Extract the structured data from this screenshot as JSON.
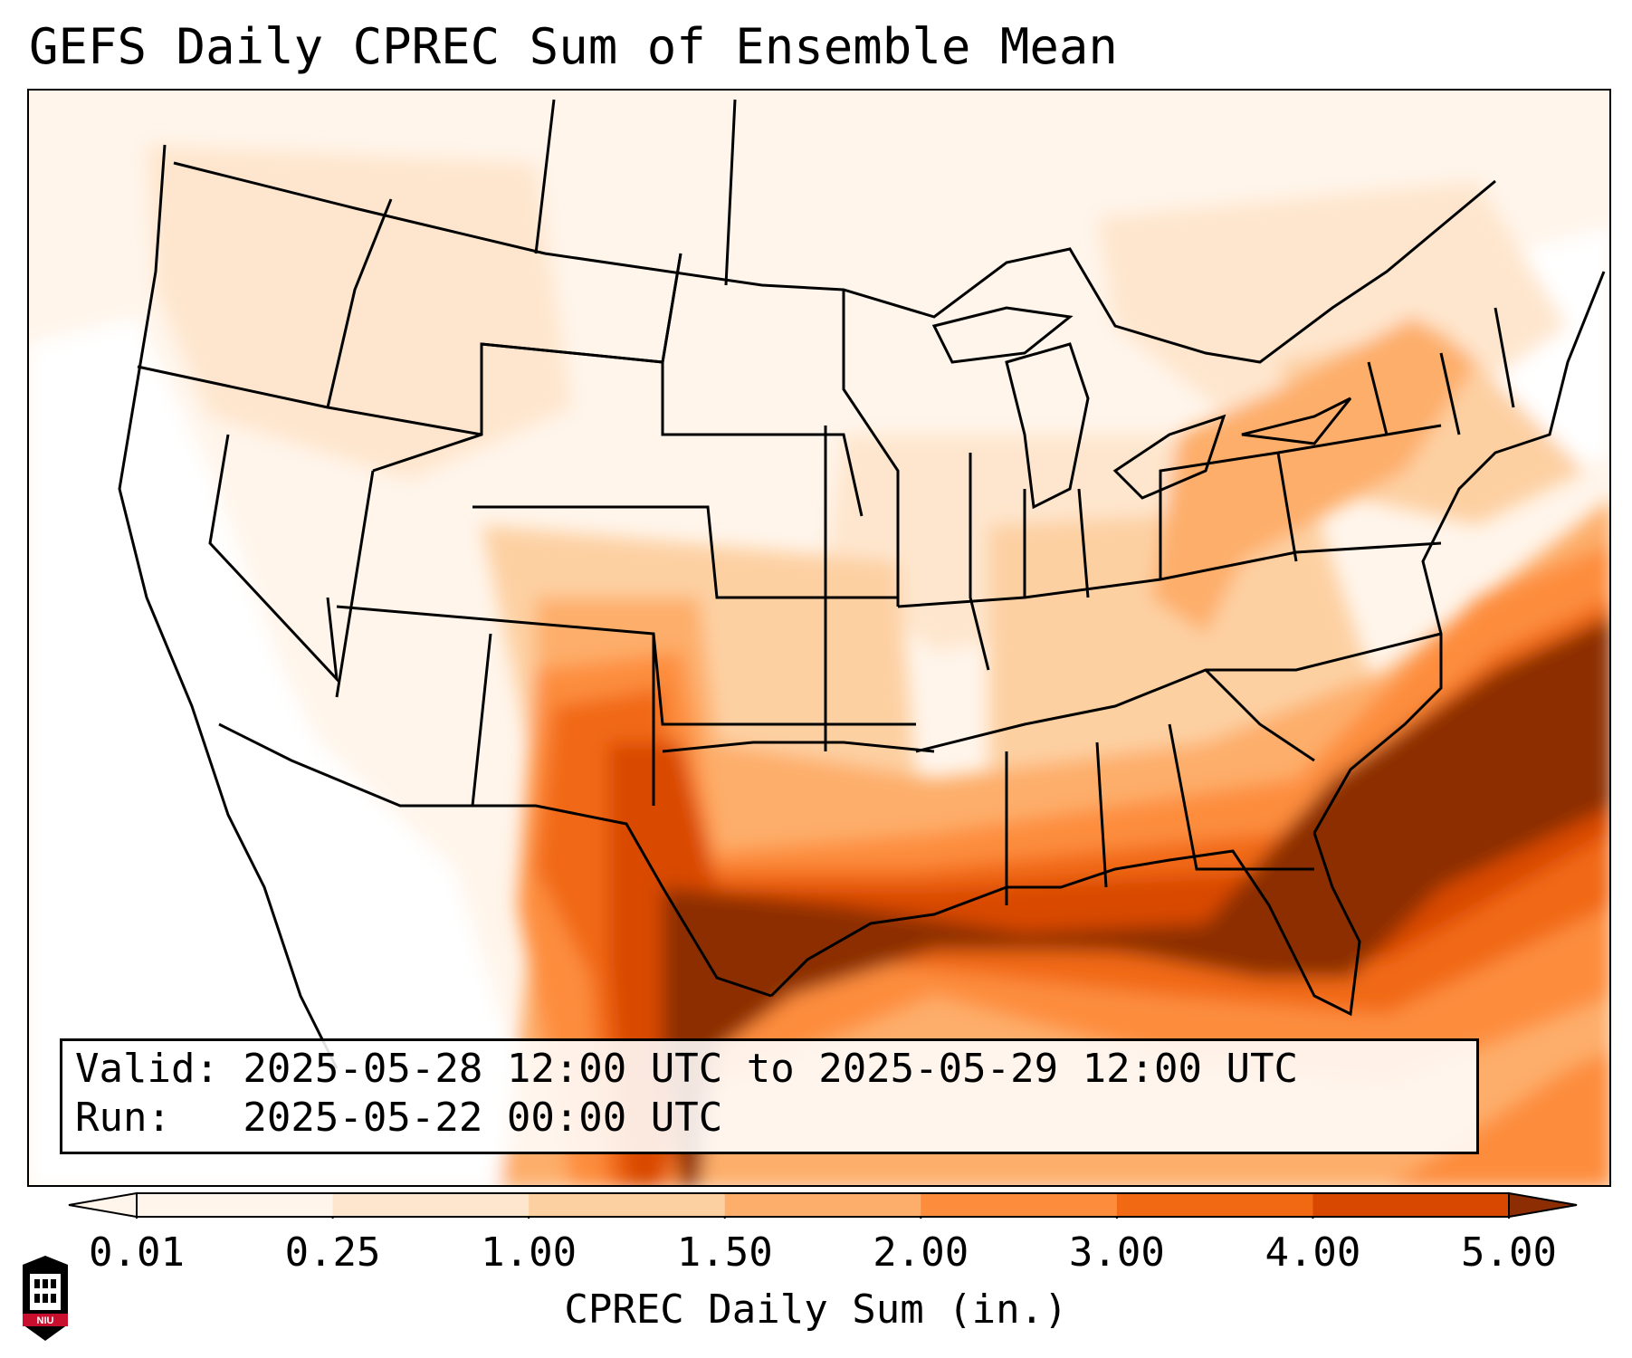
{
  "title": "GEFS Daily CPREC Sum of Ensemble Mean",
  "info": {
    "valid_line": "Valid: 2025-05-28 12:00 UTC to 2025-05-29 12:00 UTC",
    "run_line": "Run:   2025-05-22 00:00 UTC"
  },
  "colorbar": {
    "label": "CPREC Daily Sum (in.)",
    "ticks": [
      "0.01",
      "0.25",
      "1.00",
      "1.50",
      "2.00",
      "3.00",
      "4.00",
      "5.00"
    ],
    "colors": [
      "#fff5eb",
      "#fee6ce",
      "#fdd0a2",
      "#fdae6b",
      "#fd8d3c",
      "#f16913",
      "#d94801",
      "#8c2d04"
    ],
    "extend": "both"
  },
  "logo": {
    "text": "NIU"
  },
  "map": {
    "projection": "Lambert conformal (CONUS)",
    "field": "CPREC daily sum, ensemble mean",
    "max_region": "Gulf Coast / Southeast US and western Atlantic"
  }
}
